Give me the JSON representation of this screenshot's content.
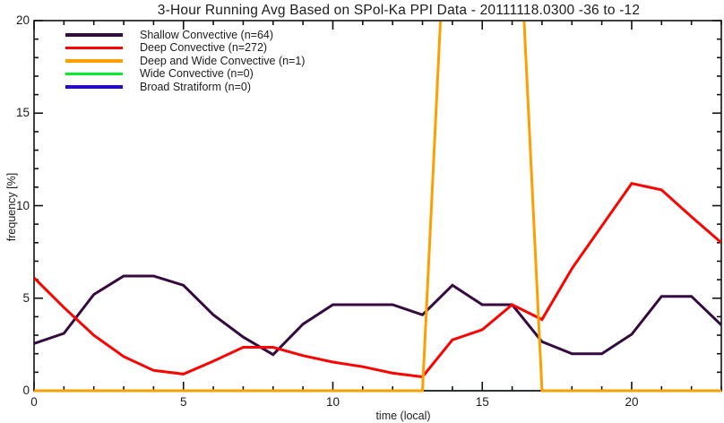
{
  "chart_data": {
    "type": "line",
    "title": "3-Hour Running Avg Based on SPol-Ka PPI Data - 20111118.0300 -36 to -12",
    "xlabel": "time (local)",
    "ylabel": "frequency [%]",
    "xlim": [
      0,
      23
    ],
    "ylim": [
      0,
      20
    ],
    "xticks": [
      0,
      5,
      10,
      15,
      20
    ],
    "yticks": [
      0,
      5,
      10,
      15,
      20
    ],
    "minor_tick_interval": 1,
    "grid": false,
    "legend_position": "top-left-inside",
    "frame_color": "#111111",
    "x": [
      0,
      1,
      2,
      3,
      4,
      5,
      6,
      7,
      8,
      9,
      10,
      11,
      12,
      13,
      14,
      15,
      16,
      17,
      18,
      19,
      20,
      21,
      22,
      23
    ],
    "series": [
      {
        "name": "shallow_convective",
        "label": "Shallow Convective (n=64)",
        "color": "#340A3F",
        "values": [
          2.55,
          3.1,
          5.2,
          6.2,
          6.2,
          5.7,
          4.1,
          2.9,
          1.95,
          3.6,
          4.65,
          4.65,
          4.65,
          4.1,
          5.7,
          4.65,
          4.65,
          2.65,
          2.0,
          2.0,
          3.05,
          5.1,
          5.1,
          3.55
        ]
      },
      {
        "name": "deep_convective",
        "label": "Deep Convective (n=272)",
        "color": "#F90400",
        "values": [
          6.1,
          4.5,
          3.0,
          1.85,
          1.1,
          0.9,
          1.6,
          2.35,
          2.35,
          1.9,
          1.55,
          1.3,
          0.95,
          0.75,
          2.75,
          3.3,
          4.65,
          3.85,
          6.6,
          8.9,
          11.2,
          10.85,
          9.4,
          8.0
        ]
      },
      {
        "name": "deep_wide_convective",
        "label": "Deep and Wide Convective (n=1)",
        "color": "#FB9F02",
        "values": [
          0,
          0,
          0,
          0,
          0,
          0,
          0,
          0,
          0,
          0,
          0,
          0,
          0,
          0,
          33.3,
          33.3,
          33.3,
          0,
          0,
          0,
          0,
          0,
          0,
          0
        ]
      },
      {
        "name": "wide_convective",
        "label": "Wide Convective (n=0)",
        "color": "#00EE2D",
        "values": [
          0,
          0,
          0,
          0,
          0,
          0,
          0,
          0,
          0,
          0,
          0,
          0,
          0,
          0,
          0,
          0,
          0,
          0,
          0,
          0,
          0,
          0,
          0,
          0
        ]
      },
      {
        "name": "broad_stratiform",
        "label": "Broad Stratiform (n=0)",
        "color": "#2307DC",
        "values": [
          0,
          0,
          0,
          0,
          0,
          0,
          0,
          0,
          0,
          0,
          0,
          0,
          0,
          0,
          0,
          0,
          0,
          0,
          0,
          0,
          0,
          0,
          0,
          0
        ]
      }
    ]
  }
}
